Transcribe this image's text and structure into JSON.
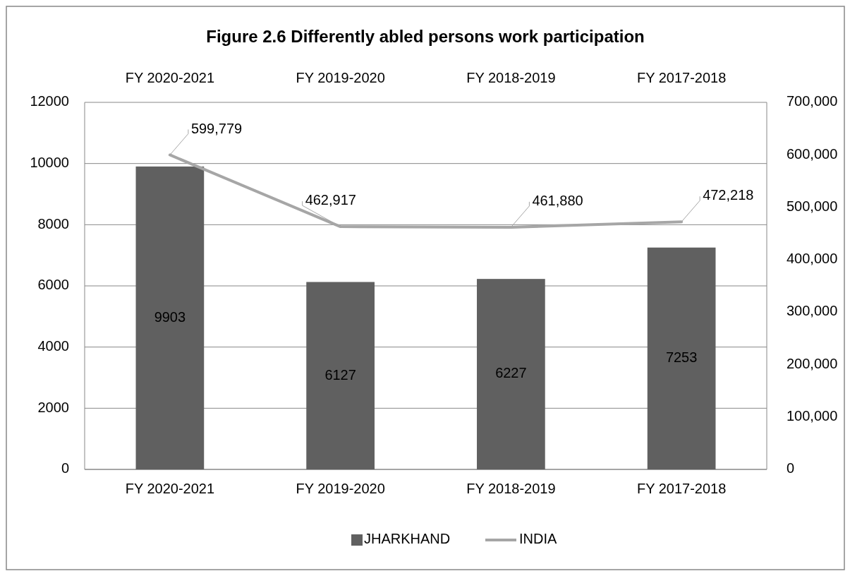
{
  "chart_data": {
    "type": "bar",
    "title": "Figure 2.6 Differently abled persons work participation",
    "categories": [
      "FY 2020-2021",
      "FY 2019-2020",
      "FY 2018-2019",
      "FY 2017-2018"
    ],
    "series": [
      {
        "name": "JHARKHAND",
        "color": "#606060",
        "values": [
          9903,
          6127,
          6227,
          7253
        ]
      },
      {
        "name": "INDIA",
        "type": "line",
        "axis": "y2",
        "color": "#a6a6a6",
        "values": [
          599779,
          462917,
          461880,
          472218
        ],
        "value_labels": [
          "599,779",
          "462,917",
          "461,880",
          "472,218"
        ]
      }
    ],
    "ylim": [
      0,
      12000
    ],
    "yticks": [
      0,
      2000,
      4000,
      6000,
      8000,
      10000,
      12000
    ],
    "y2lim": [
      0,
      700000
    ],
    "y2ticks": [
      0,
      {
        "value": 100000,
        "label": "100,000"
      },
      {
        "value": 200000,
        "label": "200,000"
      },
      {
        "value": 300000,
        "label": "300,000"
      },
      {
        "value": 400000,
        "label": "400,000"
      },
      {
        "value": 500000,
        "label": "500,000"
      },
      {
        "value": 600000,
        "label": "600,000"
      },
      {
        "value": 700000,
        "label": "700,000"
      }
    ],
    "grid": "y",
    "legend": "bottom",
    "data_labels": true
  }
}
